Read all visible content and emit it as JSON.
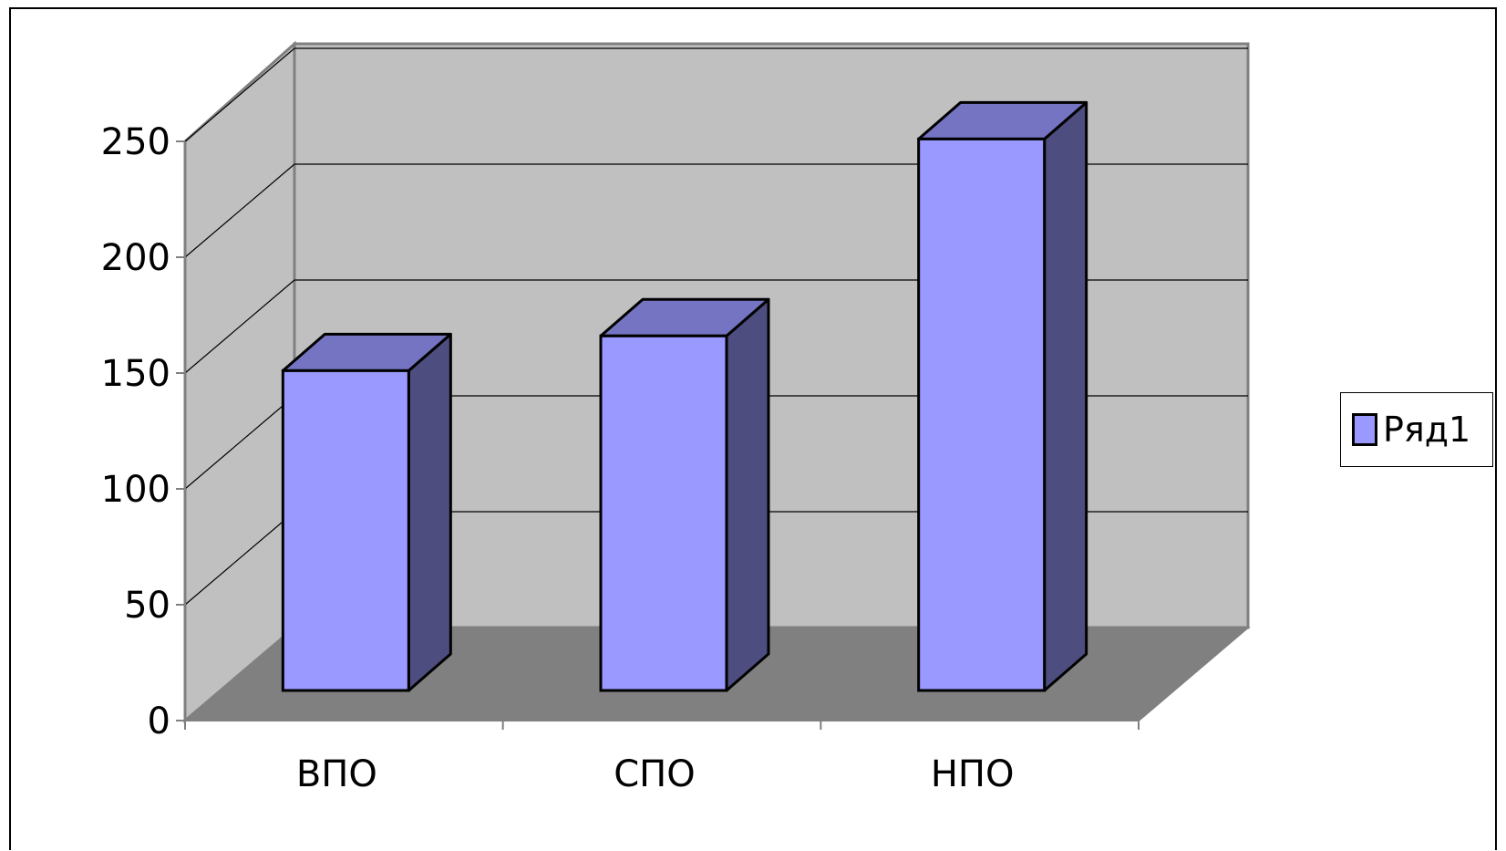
{
  "chart_data": {
    "type": "bar",
    "categories": [
      "ВПО",
      "СПО",
      "НПО"
    ],
    "series": [
      {
        "name": "Ряд1",
        "values": [
          140,
          155,
          240
        ]
      }
    ],
    "yticks": [
      "0",
      "50",
      "100",
      "150",
      "200",
      "250"
    ],
    "ylim": [
      0,
      250
    ],
    "grid": true,
    "legend": "right",
    "title": "",
    "xlabel": "",
    "ylabel": "",
    "colors": {
      "bar_front": "#9999ff",
      "bar_top": "#7474c2",
      "bar_side": "#4d4d80",
      "back_wall": "#c0c0c0",
      "side_wall": "#c0c0c0",
      "floor": "#808080",
      "grid": "#000000"
    }
  }
}
